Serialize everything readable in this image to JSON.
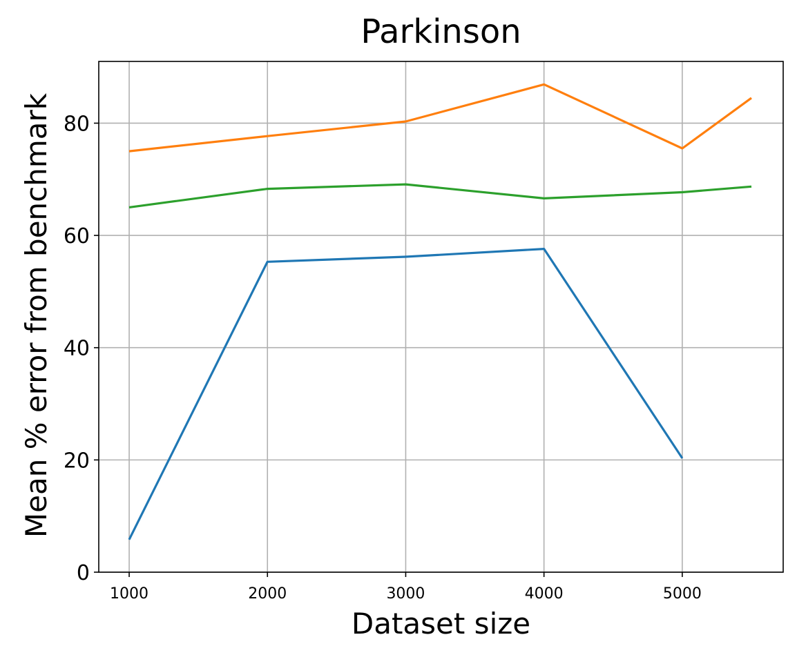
{
  "chart_data": {
    "type": "line",
    "title": "Parkinson",
    "xlabel": "Dataset size",
    "ylabel": "Mean % error from benchmark",
    "xlim": [
      780,
      5730
    ],
    "ylim": [
      0,
      91
    ],
    "grid": true,
    "x_ticks": [
      1000,
      2000,
      3000,
      4000,
      5000
    ],
    "x_tick_labels": [
      "1000",
      "2000",
      "3000",
      "4000",
      "5000"
    ],
    "y_ticks": [
      0,
      20,
      40,
      60,
      80
    ],
    "y_tick_labels": [
      "0",
      "20",
      "40",
      "60",
      "80"
    ],
    "series": [
      {
        "name": "blue series",
        "color": "#1f77b4",
        "x": [
          1000,
          2000,
          3000,
          4000,
          5000
        ],
        "values": [
          5.8,
          55.3,
          56.2,
          57.6,
          20.3
        ]
      },
      {
        "name": "orange series",
        "color": "#ff7f0e",
        "x": [
          1000,
          2000,
          3000,
          4000,
          5000,
          5500
        ],
        "values": [
          75.0,
          77.7,
          80.3,
          86.9,
          75.5,
          84.5
        ]
      },
      {
        "name": "green series",
        "color": "#2ca02c",
        "x": [
          1000,
          2000,
          3000,
          4000,
          5000,
          5500
        ],
        "values": [
          65.0,
          68.3,
          69.1,
          66.6,
          67.7,
          68.7
        ]
      }
    ]
  }
}
